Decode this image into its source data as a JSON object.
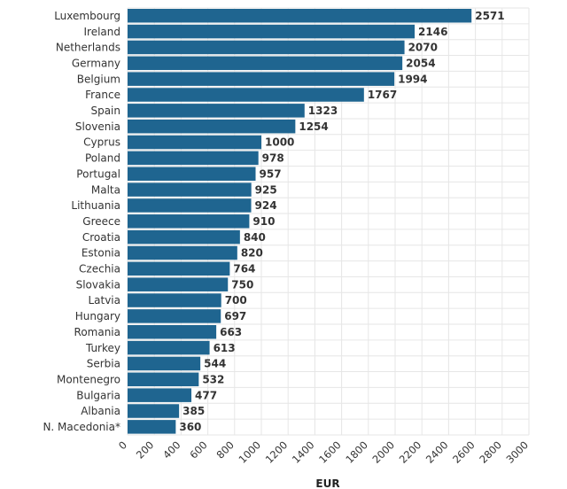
{
  "chart_data": {
    "type": "bar",
    "orientation": "horizontal",
    "categories": [
      "Luxembourg",
      "Ireland",
      "Netherlands",
      "Germany",
      "Belgium",
      "France",
      "Spain",
      "Slovenia",
      "Cyprus",
      "Poland",
      "Portugal",
      "Malta",
      "Lithuania",
      "Greece",
      "Croatia",
      "Estonia",
      "Czechia",
      "Slovakia",
      "Latvia",
      "Hungary",
      "Romania",
      "Turkey",
      "Serbia",
      "Montenegro",
      "Bulgaria",
      "Albania",
      "N. Macedonia*"
    ],
    "values": [
      2571,
      2146,
      2070,
      2054,
      1994,
      1767,
      1323,
      1254,
      1000,
      978,
      957,
      925,
      924,
      910,
      840,
      820,
      764,
      750,
      700,
      697,
      663,
      613,
      544,
      532,
      477,
      385,
      360
    ],
    "value_labels": [
      "2571",
      "2146",
      "2070",
      "2054",
      "1994",
      "1767",
      "1323",
      "1254",
      "1000",
      "978",
      "957",
      "925",
      "924",
      "910",
      "840",
      "820",
      "764",
      "750",
      "700",
      "697",
      "663",
      "613",
      "544",
      "532",
      "477",
      "385",
      "360"
    ],
    "xticks": [
      "0",
      "200",
      "400",
      "600",
      "800",
      "1000",
      "1200",
      "1400",
      "1600",
      "1800",
      "2000",
      "2200",
      "2400",
      "2600",
      "2800",
      "3000"
    ],
    "xlim": [
      0,
      3000
    ],
    "xlabel": "EUR",
    "grid": true,
    "bar_color": "#1f6590"
  }
}
